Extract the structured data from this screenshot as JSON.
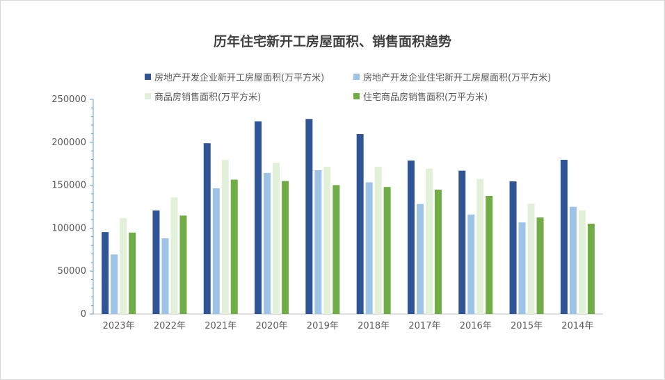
{
  "chart_data": {
    "type": "bar",
    "title": "历年住宅新开工房屋面积、销售面积趋势",
    "categories": [
      "2023年",
      "2022年",
      "2021年",
      "2020年",
      "2019年",
      "2018年",
      "2017年",
      "2016年",
      "2015年",
      "2014年"
    ],
    "series": [
      {
        "name": "房地产开发企业新开工房屋面积(万平方米)",
        "color": "#2f5597",
        "values": [
          95376,
          120587,
          198895,
          224433,
          227154,
          209537,
          178654,
          166928,
          154454,
          179592
        ]
      },
      {
        "name": "房地产开发企业住宅新开工房屋面积(万平方米)",
        "color": "#9dc3e6",
        "values": [
          69286,
          88135,
          146379,
          164329,
          167463,
          153353,
          128098,
          115911,
          106651,
          124877
        ]
      },
      {
        "name": "商品房销售面积(万平方米)",
        "color": "#e2f0d9",
        "values": [
          111735,
          135837,
          179433,
          176086,
          171558,
          171465,
          169408,
          157349,
          128495,
          120649
        ]
      },
      {
        "name": "住宅商品房销售面积(万平方米)",
        "color": "#70ad47",
        "values": [
          94796,
          114631,
          156532,
          154878,
          150144,
          147929,
          144789,
          137540,
          112412,
          105188
        ]
      }
    ],
    "yticks": [
      "250000",
      "200000",
      "150000",
      "100000",
      "50000",
      "0"
    ],
    "ylim": [
      0,
      250000
    ],
    "xlabel": "",
    "ylabel": "",
    "legend_position": "top"
  }
}
